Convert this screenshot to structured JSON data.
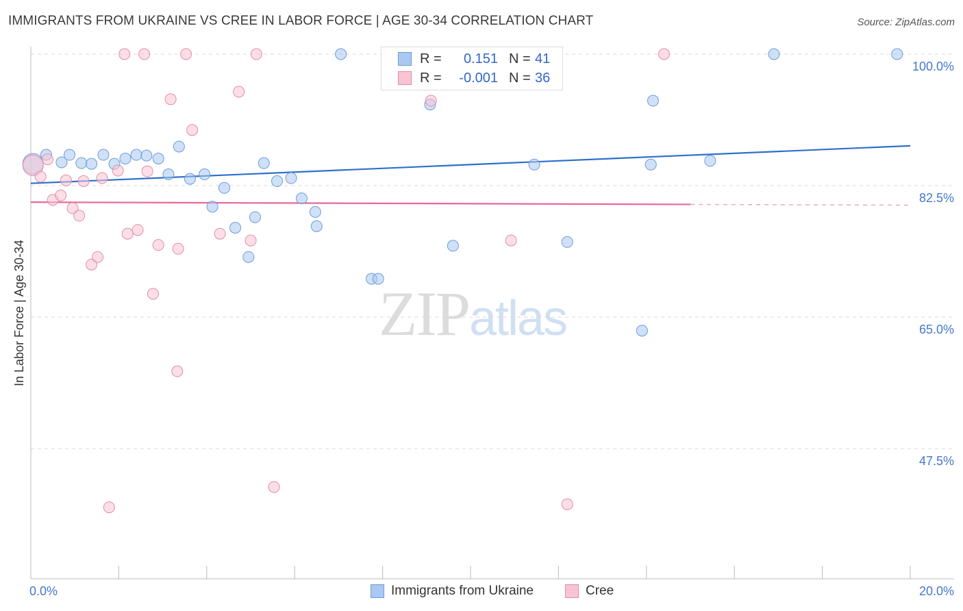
{
  "header": {
    "title": "IMMIGRANTS FROM UKRAINE VS CREE IN LABOR FORCE | AGE 30-34 CORRELATION CHART",
    "source": "Source: ZipAtlas.com"
  },
  "watermark": {
    "zip": "ZIP",
    "atlas": "atlas"
  },
  "legend": {
    "rows": [
      {
        "r_label": "R =",
        "r_value": "0.151",
        "n_label": "N =",
        "n_value": "41",
        "color": "#aac8f0",
        "border": "#6b9bd8"
      },
      {
        "r_label": "R =",
        "r_value": "-0.001",
        "n_label": "N =",
        "n_value": "36",
        "color": "#f8c4d4",
        "border": "#e68aa8"
      }
    ]
  },
  "bottom_legend": [
    {
      "label": "Immigrants from Ukraine",
      "color": "#aac8f0",
      "border": "#6b9bd8"
    },
    {
      "label": "Cree",
      "color": "#f8c4d4",
      "border": "#e68aa8"
    }
  ],
  "chart_data": {
    "type": "scatter",
    "title": "IMMIGRANTS FROM UKRAINE VS CREE IN LABOR FORCE | AGE 30-34 CORRELATION CHART",
    "xlabel": "",
    "ylabel": "In Labor Force | Age 30-34",
    "xlim": [
      0,
      20
    ],
    "ylim": [
      30.5,
      101.5
    ],
    "x_tick_labels": [
      "0.0%",
      "20.0%"
    ],
    "y_ticks": [
      100,
      82.5,
      65,
      47.5
    ],
    "y_tick_labels": [
      "100.0%",
      "82.5%",
      "65.0%",
      "47.5%"
    ],
    "grid": "horizontal dashed",
    "legend_placement": "top-center",
    "colors": {
      "ukraine": "#aac8f0",
      "ukraine_stroke": "#6b9bd8",
      "ukraine_line": "#2f6fcc",
      "cree": "#f8c4d4",
      "cree_stroke": "#e68aa8",
      "cree_line": "#e8679a"
    },
    "series": [
      {
        "name": "Immigrants from Ukraine",
        "trend": {
          "x": [
            0,
            20
          ],
          "y": [
            82.8,
            87.8
          ]
        },
        "points": [
          {
            "x": 0.05,
            "y": 85.4,
            "big": true
          },
          {
            "x": 0.35,
            "y": 86.6
          },
          {
            "x": 0.7,
            "y": 85.6
          },
          {
            "x": 0.88,
            "y": 86.6
          },
          {
            "x": 1.15,
            "y": 85.5
          },
          {
            "x": 1.38,
            "y": 85.4
          },
          {
            "x": 1.65,
            "y": 86.6
          },
          {
            "x": 1.9,
            "y": 85.4
          },
          {
            "x": 2.15,
            "y": 86.1
          },
          {
            "x": 2.4,
            "y": 86.6
          },
          {
            "x": 2.63,
            "y": 86.5
          },
          {
            "x": 2.9,
            "y": 86.1
          },
          {
            "x": 3.13,
            "y": 84.0
          },
          {
            "x": 3.37,
            "y": 87.7
          },
          {
            "x": 3.62,
            "y": 83.4
          },
          {
            "x": 3.95,
            "y": 84.0
          },
          {
            "x": 4.13,
            "y": 79.7
          },
          {
            "x": 4.4,
            "y": 82.2
          },
          {
            "x": 4.65,
            "y": 76.9
          },
          {
            "x": 4.95,
            "y": 73.0
          },
          {
            "x": 5.1,
            "y": 78.3
          },
          {
            "x": 5.3,
            "y": 85.5
          },
          {
            "x": 5.6,
            "y": 83.1
          },
          {
            "x": 5.92,
            "y": 83.5
          },
          {
            "x": 6.16,
            "y": 80.8
          },
          {
            "x": 6.47,
            "y": 79.0
          },
          {
            "x": 6.5,
            "y": 77.1
          },
          {
            "x": 7.05,
            "y": 101.5
          },
          {
            "x": 7.75,
            "y": 70.1
          },
          {
            "x": 7.9,
            "y": 70.1
          },
          {
            "x": 9.08,
            "y": 93.3
          },
          {
            "x": 9.4,
            "y": 101.5
          },
          {
            "x": 9.6,
            "y": 74.5
          },
          {
            "x": 11.45,
            "y": 85.3
          },
          {
            "x": 12.2,
            "y": 75.0
          },
          {
            "x": 13.9,
            "y": 63.2
          },
          {
            "x": 14.1,
            "y": 85.3
          },
          {
            "x": 14.15,
            "y": 93.8
          },
          {
            "x": 15.45,
            "y": 85.8
          },
          {
            "x": 16.9,
            "y": 101.5
          },
          {
            "x": 19.7,
            "y": 101.5
          }
        ]
      },
      {
        "name": "Cree",
        "trend": {
          "x": [
            0,
            15
          ],
          "y": [
            80.3,
            80.0
          ]
        },
        "trend_dashed": {
          "x": [
            15,
            20
          ],
          "y": [
            80.0,
            79.9
          ]
        },
        "points": [
          {
            "x": 0.05,
            "y": 85.2,
            "big": true
          },
          {
            "x": 0.22,
            "y": 83.7
          },
          {
            "x": 0.38,
            "y": 86.0
          },
          {
            "x": 0.5,
            "y": 80.6
          },
          {
            "x": 0.68,
            "y": 81.2
          },
          {
            "x": 0.8,
            "y": 83.2
          },
          {
            "x": 0.95,
            "y": 79.5
          },
          {
            "x": 1.1,
            "y": 78.5
          },
          {
            "x": 1.2,
            "y": 83.1
          },
          {
            "x": 1.38,
            "y": 72.0
          },
          {
            "x": 1.52,
            "y": 73.0
          },
          {
            "x": 1.62,
            "y": 83.5
          },
          {
            "x": 1.78,
            "y": 39.7
          },
          {
            "x": 1.98,
            "y": 84.5
          },
          {
            "x": 2.13,
            "y": 101.5
          },
          {
            "x": 2.2,
            "y": 76.1
          },
          {
            "x": 2.43,
            "y": 76.6
          },
          {
            "x": 2.58,
            "y": 101.5
          },
          {
            "x": 2.65,
            "y": 84.4
          },
          {
            "x": 2.78,
            "y": 68.1
          },
          {
            "x": 2.9,
            "y": 74.6
          },
          {
            "x": 3.18,
            "y": 94.0
          },
          {
            "x": 3.33,
            "y": 57.8
          },
          {
            "x": 3.35,
            "y": 74.1
          },
          {
            "x": 3.53,
            "y": 101.5
          },
          {
            "x": 3.67,
            "y": 89.9
          },
          {
            "x": 4.3,
            "y": 76.1
          },
          {
            "x": 4.73,
            "y": 95.0
          },
          {
            "x": 5.0,
            "y": 75.2
          },
          {
            "x": 5.13,
            "y": 101.5
          },
          {
            "x": 5.53,
            "y": 42.4
          },
          {
            "x": 9.03,
            "y": 101.5
          },
          {
            "x": 9.1,
            "y": 93.8
          },
          {
            "x": 10.92,
            "y": 75.2
          },
          {
            "x": 12.2,
            "y": 40.1
          },
          {
            "x": 14.4,
            "y": 101.5
          }
        ]
      }
    ]
  }
}
